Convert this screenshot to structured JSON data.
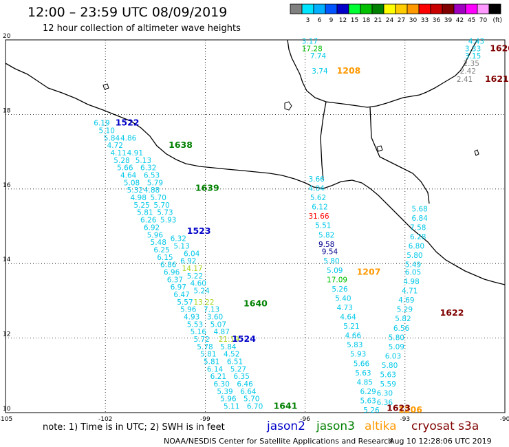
{
  "header": {
    "title": "12:00 – 23:59 UTC 08/09/2019",
    "subtitle": "12 hour collection of altimeter wave heights"
  },
  "colorbar": {
    "unit": "(ft)",
    "swatches": [
      {
        "label": "",
        "color": "#808080"
      },
      {
        "label": "3",
        "color": "#00e5ff"
      },
      {
        "label": "6",
        "color": "#00b0ff"
      },
      {
        "label": "9",
        "color": "#0055ff"
      },
      {
        "label": "12",
        "color": "#0000c8"
      },
      {
        "label": "15",
        "color": "#00ff33"
      },
      {
        "label": "18",
        "color": "#00c000"
      },
      {
        "label": "21",
        "color": "#008000"
      },
      {
        "label": "24",
        "color": "#ffff00"
      },
      {
        "label": "27",
        "color": "#ffcc00"
      },
      {
        "label": "30",
        "color": "#ff9900"
      },
      {
        "label": "33",
        "color": "#ff0000"
      },
      {
        "label": "36",
        "color": "#c80000"
      },
      {
        "label": "39",
        "color": "#800000"
      },
      {
        "label": "42",
        "color": "#a000c0"
      },
      {
        "label": "45",
        "color": "#ff00ff"
      },
      {
        "label": "70",
        "color": "#ff99ff"
      },
      {
        "label": "",
        "color": "#000000"
      }
    ]
  },
  "map": {
    "lon_range": [
      -105,
      -90
    ],
    "lat_range": [
      10,
      20
    ],
    "x_ticks": [
      "-105",
      "-102",
      "-99",
      "-96",
      "-93",
      "-90"
    ],
    "y_ticks": [
      "10",
      "12",
      "14",
      "16",
      "18",
      "20"
    ]
  },
  "colors": {
    "jason2": "#0000c8",
    "jason3": "#008000",
    "altika": "#ff9900",
    "cryosat": "#800000",
    "gray": "#808080",
    "cyan": "#00c8e8",
    "lime": "#00c000",
    "yellowgreen": "#a8d820",
    "red": "#ff0000",
    "navy": "#000090"
  },
  "pass_labels": [
    {
      "text": "1522",
      "c": "jason2",
      "lon": -101.7,
      "lat": 17.7
    },
    {
      "text": "1638",
      "c": "jason3",
      "lon": -100.1,
      "lat": 17.1
    },
    {
      "text": "1639",
      "c": "jason3",
      "lon": -99.3,
      "lat": 15.95
    },
    {
      "text": "1523",
      "c": "jason2",
      "lon": -99.55,
      "lat": 14.8
    },
    {
      "text": "1640",
      "c": "jason3",
      "lon": -97.85,
      "lat": 12.85
    },
    {
      "text": "1524",
      "c": "jason2",
      "lon": -98.2,
      "lat": 11.9
    },
    {
      "text": "1641",
      "c": "jason3",
      "lon": -96.95,
      "lat": 10.1
    },
    {
      "text": "1208",
      "c": "altika",
      "lon": -95.05,
      "lat": 19.1
    },
    {
      "text": "1207",
      "c": "altika",
      "lon": -94.45,
      "lat": 13.7
    },
    {
      "text": "1206",
      "c": "altika",
      "lon": -93.2,
      "lat": 10.0
    },
    {
      "text": "1620",
      "c": "cryosat",
      "lon": -90.45,
      "lat": 19.7
    },
    {
      "text": "1621",
      "c": "cryosat",
      "lon": -90.6,
      "lat": 18.87
    },
    {
      "text": "1622",
      "c": "cryosat",
      "lon": -91.95,
      "lat": 12.6
    },
    {
      "text": "1623",
      "c": "cryosat",
      "lon": -93.55,
      "lat": 10.05
    }
  ],
  "wave_labels": [
    {
      "text": "3.17",
      "c": "cyan",
      "lon": -96.1,
      "lat": 19.9
    },
    {
      "text": "17.28",
      "c": "lime",
      "lon": -96.1,
      "lat": 19.7
    },
    {
      "text": "7.74",
      "c": "cyan",
      "lon": -95.85,
      "lat": 19.5
    },
    {
      "text": "3.74",
      "c": "cyan",
      "lon": -95.8,
      "lat": 19.1
    },
    {
      "text": "4.43",
      "c": "cyan",
      "lon": -91.1,
      "lat": 19.9
    },
    {
      "text": "3.33",
      "c": "cyan",
      "lon": -91.2,
      "lat": 19.7
    },
    {
      "text": "3.15",
      "c": "cyan",
      "lon": -91.2,
      "lat": 19.5
    },
    {
      "text": "2.35",
      "c": "gray",
      "lon": -91.25,
      "lat": 19.3
    },
    {
      "text": "2.42",
      "c": "gray",
      "lon": -91.35,
      "lat": 19.1
    },
    {
      "text": "2.41",
      "c": "gray",
      "lon": -91.45,
      "lat": 18.87
    },
    {
      "text": "6.19",
      "c": "cyan",
      "lon": -102.35,
      "lat": 17.7
    },
    {
      "text": "5.10",
      "c": "cyan",
      "lon": -102.2,
      "lat": 17.5
    },
    {
      "text": "5.84",
      "c": "cyan",
      "lon": -102.05,
      "lat": 17.3
    },
    {
      "text": "4.72",
      "c": "cyan",
      "lon": -101.95,
      "lat": 17.1
    },
    {
      "text": "4.11",
      "c": "cyan",
      "lon": -101.85,
      "lat": 16.9
    },
    {
      "text": "5.28",
      "c": "cyan",
      "lon": -101.75,
      "lat": 16.7
    },
    {
      "text": "5.66",
      "c": "cyan",
      "lon": -101.65,
      "lat": 16.5
    },
    {
      "text": "4.64",
      "c": "cyan",
      "lon": -101.55,
      "lat": 16.3
    },
    {
      "text": "5.08",
      "c": "cyan",
      "lon": -101.45,
      "lat": 16.1
    },
    {
      "text": "5.32",
      "c": "cyan",
      "lon": -101.35,
      "lat": 15.9
    },
    {
      "text": "4.98",
      "c": "cyan",
      "lon": -101.25,
      "lat": 15.7
    },
    {
      "text": "5.25",
      "c": "cyan",
      "lon": -101.15,
      "lat": 15.5
    },
    {
      "text": "5.81",
      "c": "cyan",
      "lon": -101.05,
      "lat": 15.3
    },
    {
      "text": "6.26",
      "c": "cyan",
      "lon": -100.95,
      "lat": 15.1
    },
    {
      "text": "6.92",
      "c": "cyan",
      "lon": -100.85,
      "lat": 14.9
    },
    {
      "text": "5.96",
      "c": "cyan",
      "lon": -100.75,
      "lat": 14.7
    },
    {
      "text": "5.48",
      "c": "cyan",
      "lon": -100.65,
      "lat": 14.5
    },
    {
      "text": "6.25",
      "c": "cyan",
      "lon": -100.55,
      "lat": 14.3
    },
    {
      "text": "6.15",
      "c": "cyan",
      "lon": -100.45,
      "lat": 14.1
    },
    {
      "text": "6.86",
      "c": "cyan",
      "lon": -100.35,
      "lat": 13.9
    },
    {
      "text": "6.96",
      "c": "cyan",
      "lon": -100.25,
      "lat": 13.7
    },
    {
      "text": "6.37",
      "c": "cyan",
      "lon": -100.15,
      "lat": 13.5
    },
    {
      "text": "6.97",
      "c": "cyan",
      "lon": -100.05,
      "lat": 13.3
    },
    {
      "text": "6.47",
      "c": "cyan",
      "lon": -99.95,
      "lat": 13.1
    },
    {
      "text": "5.57",
      "c": "cyan",
      "lon": -99.85,
      "lat": 12.9
    },
    {
      "text": "5.96",
      "c": "cyan",
      "lon": -99.75,
      "lat": 12.7
    },
    {
      "text": "4.93",
      "c": "cyan",
      "lon": -99.65,
      "lat": 12.5
    },
    {
      "text": "5.53",
      "c": "cyan",
      "lon": -99.55,
      "lat": 12.3
    },
    {
      "text": "5.16",
      "c": "cyan",
      "lon": -99.45,
      "lat": 12.1
    },
    {
      "text": "5.72",
      "c": "cyan",
      "lon": -99.35,
      "lat": 11.9
    },
    {
      "text": "5.78",
      "c": "cyan",
      "lon": -99.25,
      "lat": 11.7
    },
    {
      "text": "5.81",
      "c": "cyan",
      "lon": -99.15,
      "lat": 11.5
    },
    {
      "text": "5.81",
      "c": "cyan",
      "lon": -99.05,
      "lat": 11.3
    },
    {
      "text": "6.14",
      "c": "cyan",
      "lon": -98.95,
      "lat": 11.1
    },
    {
      "text": "6.21",
      "c": "cyan",
      "lon": -98.85,
      "lat": 10.9
    },
    {
      "text": "6.30",
      "c": "cyan",
      "lon": -98.75,
      "lat": 10.7
    },
    {
      "text": "5.39",
      "c": "cyan",
      "lon": -98.65,
      "lat": 10.5
    },
    {
      "text": "5.96",
      "c": "cyan",
      "lon": -98.55,
      "lat": 10.3
    },
    {
      "text": "5.11",
      "c": "cyan",
      "lon": -98.45,
      "lat": 10.1
    },
    {
      "text": "4.86",
      "c": "cyan",
      "lon": -101.55,
      "lat": 17.3
    },
    {
      "text": "4.91",
      "c": "cyan",
      "lon": -101.35,
      "lat": 16.9
    },
    {
      "text": "5.13",
      "c": "cyan",
      "lon": -101.1,
      "lat": 16.7
    },
    {
      "text": "6.32",
      "c": "cyan",
      "lon": -100.95,
      "lat": 16.5
    },
    {
      "text": "6.53",
      "c": "cyan",
      "lon": -100.85,
      "lat": 16.3
    },
    {
      "text": "5.79",
      "c": "cyan",
      "lon": -100.75,
      "lat": 16.1
    },
    {
      "text": "4.88",
      "c": "cyan",
      "lon": -100.85,
      "lat": 15.9
    },
    {
      "text": "5.70",
      "c": "cyan",
      "lon": -100.65,
      "lat": 15.7
    },
    {
      "text": "5.70",
      "c": "cyan",
      "lon": -100.55,
      "lat": 15.5
    },
    {
      "text": "5.73",
      "c": "cyan",
      "lon": -100.45,
      "lat": 15.3
    },
    {
      "text": "5.93",
      "c": "cyan",
      "lon": -100.35,
      "lat": 15.1
    },
    {
      "text": "6.32",
      "c": "cyan",
      "lon": -100.05,
      "lat": 14.6
    },
    {
      "text": "5.13",
      "c": "cyan",
      "lon": -99.95,
      "lat": 14.4
    },
    {
      "text": "6.04",
      "c": "cyan",
      "lon": -99.65,
      "lat": 14.2
    },
    {
      "text": "6.92",
      "c": "cyan",
      "lon": -99.75,
      "lat": 14.0
    },
    {
      "text": "14.17",
      "c": "yellowgreen",
      "lon": -99.7,
      "lat": 13.8
    },
    {
      "text": "5.22",
      "c": "cyan",
      "lon": -99.55,
      "lat": 13.6
    },
    {
      "text": "4.60",
      "c": "cyan",
      "lon": -99.45,
      "lat": 13.4
    },
    {
      "text": "5.24",
      "c": "cyan",
      "lon": -99.35,
      "lat": 13.2
    },
    {
      "text": "13.22",
      "c": "yellowgreen",
      "lon": -99.35,
      "lat": 12.9
    },
    {
      "text": "7.13",
      "c": "cyan",
      "lon": -99.05,
      "lat": 12.7
    },
    {
      "text": "3.60",
      "c": "cyan",
      "lon": -98.95,
      "lat": 12.5
    },
    {
      "text": "5.07",
      "c": "cyan",
      "lon": -98.85,
      "lat": 12.3
    },
    {
      "text": "4.87",
      "c": "cyan",
      "lon": -98.75,
      "lat": 12.1
    },
    {
      "text": "21.19",
      "c": "yellowgreen",
      "lon": -98.6,
      "lat": 11.9
    },
    {
      "text": "5.84",
      "c": "cyan",
      "lon": -98.55,
      "lat": 11.7
    },
    {
      "text": "4.52",
      "c": "cyan",
      "lon": -98.45,
      "lat": 11.5
    },
    {
      "text": "6.51",
      "c": "cyan",
      "lon": -98.35,
      "lat": 11.3
    },
    {
      "text": "5.27",
      "c": "cyan",
      "lon": -98.25,
      "lat": 11.1
    },
    {
      "text": "6.35",
      "c": "cyan",
      "lon": -98.15,
      "lat": 10.9
    },
    {
      "text": "6.46",
      "c": "cyan",
      "lon": -98.05,
      "lat": 10.7
    },
    {
      "text": "6.64",
      "c": "cyan",
      "lon": -97.95,
      "lat": 10.5
    },
    {
      "text": "5.70",
      "c": "cyan",
      "lon": -97.85,
      "lat": 10.3
    },
    {
      "text": "6.70",
      "c": "cyan",
      "lon": -97.75,
      "lat": 10.1
    },
    {
      "text": "3.66",
      "c": "cyan",
      "lon": -95.9,
      "lat": 16.2
    },
    {
      "text": "4.04",
      "c": "cyan",
      "lon": -95.9,
      "lat": 15.95
    },
    {
      "text": "5.62",
      "c": "cyan",
      "lon": -95.85,
      "lat": 15.7
    },
    {
      "text": "6.12",
      "c": "cyan",
      "lon": -95.8,
      "lat": 15.45
    },
    {
      "text": "31.66",
      "c": "red",
      "lon": -95.9,
      "lat": 15.2
    },
    {
      "text": "5.51",
      "c": "cyan",
      "lon": -95.7,
      "lat": 14.95
    },
    {
      "text": "5.82",
      "c": "cyan",
      "lon": -95.6,
      "lat": 14.7
    },
    {
      "text": "9.58",
      "c": "navy",
      "lon": -95.6,
      "lat": 14.45
    },
    {
      "text": "9.54",
      "c": "navy",
      "lon": -95.5,
      "lat": 14.25
    },
    {
      "text": "5.80",
      "c": "cyan",
      "lon": -95.45,
      "lat": 14.0
    },
    {
      "text": "5.09",
      "c": "cyan",
      "lon": -95.35,
      "lat": 13.75
    },
    {
      "text": "17.09",
      "c": "lime",
      "lon": -95.35,
      "lat": 13.5
    },
    {
      "text": "5.26",
      "c": "cyan",
      "lon": -95.2,
      "lat": 13.25
    },
    {
      "text": "5.40",
      "c": "cyan",
      "lon": -95.1,
      "lat": 13.0
    },
    {
      "text": "4.73",
      "c": "cyan",
      "lon": -95.05,
      "lat": 12.75
    },
    {
      "text": "4.64",
      "c": "cyan",
      "lon": -94.95,
      "lat": 12.5
    },
    {
      "text": "5.21",
      "c": "cyan",
      "lon": -94.85,
      "lat": 12.25
    },
    {
      "text": "4.66",
      "c": "cyan",
      "lon": -94.8,
      "lat": 12.0
    },
    {
      "text": "5.83",
      "c": "cyan",
      "lon": -94.75,
      "lat": 11.75
    },
    {
      "text": "5.93",
      "c": "cyan",
      "lon": -94.65,
      "lat": 11.5
    },
    {
      "text": "5.66",
      "c": "cyan",
      "lon": -94.55,
      "lat": 11.25
    },
    {
      "text": "5.63",
      "c": "cyan",
      "lon": -94.5,
      "lat": 11.0
    },
    {
      "text": "4.85",
      "c": "cyan",
      "lon": -94.45,
      "lat": 10.75
    },
    {
      "text": "6.29",
      "c": "cyan",
      "lon": -94.35,
      "lat": 10.5
    },
    {
      "text": "5.63",
      "c": "cyan",
      "lon": -94.35,
      "lat": 10.25
    },
    {
      "text": "5.26",
      "c": "cyan",
      "lon": -94.25,
      "lat": 10.0
    },
    {
      "text": "5.68",
      "c": "cyan",
      "lon": -92.8,
      "lat": 15.4
    },
    {
      "text": "6.84",
      "c": "cyan",
      "lon": -92.8,
      "lat": 15.15
    },
    {
      "text": "7.58",
      "c": "cyan",
      "lon": -92.85,
      "lat": 14.9
    },
    {
      "text": "6.28",
      "c": "cyan",
      "lon": -92.85,
      "lat": 14.65
    },
    {
      "text": "6.80",
      "c": "cyan",
      "lon": -92.9,
      "lat": 14.4
    },
    {
      "text": "5.80",
      "c": "cyan",
      "lon": -92.95,
      "lat": 14.15
    },
    {
      "text": "5.49",
      "c": "cyan",
      "lon": -93.0,
      "lat": 13.9
    },
    {
      "text": "6.05",
      "c": "cyan",
      "lon": -93.0,
      "lat": 13.7
    },
    {
      "text": "4.98",
      "c": "cyan",
      "lon": -93.05,
      "lat": 13.45
    },
    {
      "text": "4.71",
      "c": "cyan",
      "lon": -93.1,
      "lat": 13.2
    },
    {
      "text": "4.69",
      "c": "cyan",
      "lon": -93.2,
      "lat": 12.95
    },
    {
      "text": "5.29",
      "c": "cyan",
      "lon": -93.25,
      "lat": 12.7
    },
    {
      "text": "5.82",
      "c": "cyan",
      "lon": -93.3,
      "lat": 12.45
    },
    {
      "text": "6.56",
      "c": "cyan",
      "lon": -93.35,
      "lat": 12.2
    },
    {
      "text": "5.80",
      "c": "cyan",
      "lon": -93.5,
      "lat": 11.95
    },
    {
      "text": "5.09",
      "c": "cyan",
      "lon": -93.5,
      "lat": 11.7
    },
    {
      "text": "6.03",
      "c": "cyan",
      "lon": -93.6,
      "lat": 11.45
    },
    {
      "text": "5.80",
      "c": "cyan",
      "lon": -93.7,
      "lat": 11.2
    },
    {
      "text": "5.63",
      "c": "cyan",
      "lon": -93.75,
      "lat": 10.95
    },
    {
      "text": "5.59",
      "c": "cyan",
      "lon": -93.75,
      "lat": 10.7
    },
    {
      "text": "6.30",
      "c": "cyan",
      "lon": -93.85,
      "lat": 10.45
    },
    {
      "text": "6.36",
      "c": "cyan",
      "lon": -93.85,
      "lat": 10.2
    }
  ],
  "legend": {
    "note": "note: 1) Time is in UTC; 2) SWH is in feet",
    "satellites": [
      {
        "label": "jason2",
        "c": "jason2"
      },
      {
        "label": "jason3",
        "c": "jason3"
      },
      {
        "label": "altika",
        "c": "altika"
      },
      {
        "label": "cryosat s3a",
        "c": "cryosat"
      }
    ]
  },
  "footer": {
    "credit": "NOAA/NESDIS Center for Satellite Applications and Research",
    "timestamp": "Aug 10 12:28:06 UTC 2019"
  }
}
